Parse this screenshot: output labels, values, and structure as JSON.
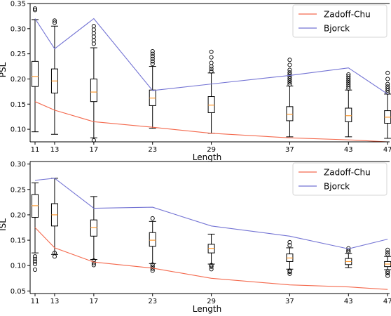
{
  "chart_data": [
    {
      "type": "box+line",
      "title": "",
      "xlabel": "Length",
      "ylabel": "PSL",
      "xlim": [
        10.5,
        47.2
      ],
      "ylim": [
        0.075,
        0.35
      ],
      "x": [
        11,
        13,
        17,
        23,
        29,
        37,
        43,
        47
      ],
      "x_tick_labels": [
        "11",
        "13",
        "17",
        "23",
        "29",
        "37",
        "43",
        "47"
      ],
      "y_ticks": [
        0.1,
        0.15,
        0.2,
        0.25,
        0.3,
        0.35
      ],
      "y_tick_labels": [
        "0.10",
        "0.15",
        "0.20",
        "0.25",
        "0.30",
        "0.35"
      ],
      "grid": false,
      "legend": "top-right",
      "series": [
        {
          "name": "Zadoff-Chu",
          "color": "#f4694d",
          "values": [
            0.155,
            0.138,
            0.115,
            0.104,
            0.092,
            0.083,
            0.079,
            0.075
          ]
        },
        {
          "name": "Bjorck",
          "color": "#7474d4",
          "values": [
            0.32,
            0.26,
            0.32,
            0.177,
            0.19,
            0.207,
            0.222,
            0.17
          ]
        }
      ],
      "boxes": [
        {
          "x": 11,
          "whislo": 0.095,
          "q1": 0.185,
          "med": 0.205,
          "q3": 0.235,
          "whishi": 0.318,
          "fliers": [
            0.337,
            0.34
          ]
        },
        {
          "x": 13,
          "whislo": 0.09,
          "q1": 0.172,
          "med": 0.196,
          "q3": 0.22,
          "whishi": 0.305,
          "fliers": [
            0.312,
            0.316
          ]
        },
        {
          "x": 17,
          "whislo": 0.083,
          "q1": 0.155,
          "med": 0.174,
          "q3": 0.2,
          "whishi": 0.262,
          "fliers": [
            0.078,
            0.27,
            0.277,
            0.284,
            0.291,
            0.298,
            0.305
          ]
        },
        {
          "x": 23,
          "whislo": 0.102,
          "q1": 0.147,
          "med": 0.162,
          "q3": 0.178,
          "whishi": 0.225,
          "fliers": [
            0.23,
            0.235,
            0.24,
            0.245,
            0.25,
            0.255
          ]
        },
        {
          "x": 29,
          "whislo": 0.092,
          "q1": 0.133,
          "med": 0.148,
          "q3": 0.165,
          "whishi": 0.212,
          "fliers": [
            0.215,
            0.22,
            0.225,
            0.232,
            0.243,
            0.254
          ]
        },
        {
          "x": 37,
          "whislo": 0.085,
          "q1": 0.117,
          "med": 0.13,
          "q3": 0.145,
          "whishi": 0.186,
          "fliers": [
            0.189,
            0.193,
            0.197,
            0.201,
            0.205,
            0.209,
            0.213,
            0.218,
            0.228,
            0.238
          ]
        },
        {
          "x": 43,
          "whislo": 0.085,
          "q1": 0.115,
          "med": 0.127,
          "q3": 0.142,
          "whishi": 0.178,
          "fliers": [
            0.181,
            0.185,
            0.189,
            0.193,
            0.197,
            0.201,
            0.205,
            0.209
          ]
        },
        {
          "x": 47,
          "whislo": 0.082,
          "q1": 0.112,
          "med": 0.124,
          "q3": 0.137,
          "whishi": 0.17,
          "fliers": [
            0.173,
            0.177,
            0.181,
            0.185,
            0.19,
            0.2,
            0.212
          ]
        }
      ]
    },
    {
      "type": "box+line",
      "title": "",
      "xlabel": "Length",
      "ylabel": "ISL",
      "xlim": [
        10.5,
        47.2
      ],
      "ylim": [
        0.045,
        0.305
      ],
      "x": [
        11,
        13,
        17,
        23,
        29,
        37,
        43,
        47
      ],
      "x_tick_labels": [
        "11",
        "13",
        "17",
        "23",
        "29",
        "37",
        "43",
        "47"
      ],
      "y_ticks": [
        0.05,
        0.1,
        0.15,
        0.2,
        0.25,
        0.3
      ],
      "y_tick_labels": [
        "0.05",
        "0.10",
        "0.15",
        "0.20",
        "0.25",
        "0.30"
      ],
      "grid": false,
      "legend": "top-right",
      "series": [
        {
          "name": "Zadoff-Chu",
          "color": "#f4694d",
          "values": [
            0.175,
            0.135,
            0.107,
            0.095,
            0.075,
            0.062,
            0.058,
            0.053
          ]
        },
        {
          "name": "Bjorck",
          "color": "#7474d4",
          "values": [
            0.268,
            0.272,
            0.213,
            0.215,
            0.178,
            0.158,
            0.133,
            0.152
          ]
        }
      ],
      "boxes": [
        {
          "x": 11,
          "whislo": 0.125,
          "q1": 0.195,
          "med": 0.218,
          "q3": 0.24,
          "whishi": 0.263,
          "fliers": [
            0.092,
            0.103,
            0.108,
            0.113,
            0.118
          ]
        },
        {
          "x": 13,
          "whislo": 0.122,
          "q1": 0.178,
          "med": 0.2,
          "q3": 0.222,
          "whishi": 0.272,
          "fliers": [
            0.118,
            0.125
          ]
        },
        {
          "x": 17,
          "whislo": 0.112,
          "q1": 0.158,
          "med": 0.175,
          "q3": 0.19,
          "whishi": 0.236,
          "fliers": [
            0.101,
            0.105,
            0.11
          ]
        },
        {
          "x": 23,
          "whislo": 0.104,
          "q1": 0.138,
          "med": 0.15,
          "q3": 0.165,
          "whishi": 0.187,
          "fliers": [
            0.09,
            0.094,
            0.098,
            0.102,
            0.193
          ]
        },
        {
          "x": 29,
          "whislo": 0.103,
          "q1": 0.125,
          "med": 0.134,
          "q3": 0.142,
          "whishi": 0.162,
          "fliers": [
            0.093,
            0.098,
            0.101
          ]
        },
        {
          "x": 37,
          "whislo": 0.093,
          "q1": 0.108,
          "med": 0.115,
          "q3": 0.123,
          "whishi": 0.135,
          "fliers": [
            0.084,
            0.088,
            0.09,
            0.14,
            0.146
          ]
        },
        {
          "x": 43,
          "whislo": 0.096,
          "q1": 0.102,
          "med": 0.108,
          "q3": 0.114,
          "whishi": 0.124,
          "fliers": [
            0.127,
            0.13,
            0.134
          ]
        },
        {
          "x": 47,
          "whislo": 0.092,
          "q1": 0.098,
          "med": 0.103,
          "q3": 0.108,
          "whishi": 0.118,
          "fliers": [
            0.08,
            0.085,
            0.088,
            0.122,
            0.126,
            0.131
          ]
        }
      ]
    }
  ]
}
